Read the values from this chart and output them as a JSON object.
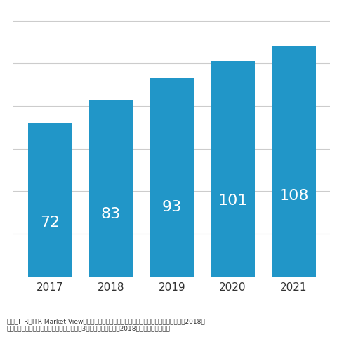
{
  "categories": [
    "2017",
    "2018",
    "2019",
    "2020",
    "2021"
  ],
  "values": [
    72,
    83,
    93,
    101,
    108
  ],
  "bar_color": "#2196C8",
  "label_color": "#ffffff",
  "label_fontsize": 16,
  "tick_fontsize": 11,
  "background_color": "#ffffff",
  "ylim": [
    0,
    125
  ],
  "grid_color": "#cccccc",
  "footer_line1": "出典：ITR『ITR Market View：サイバー・セキュリティ・コンサルティング・サービス庂2018』",
  "footer_line2": "国内の主要ベンダーの売上金額を対象とし、3月期ベースで換算。2018年度以降は予測値。",
  "bar_width": 0.72
}
